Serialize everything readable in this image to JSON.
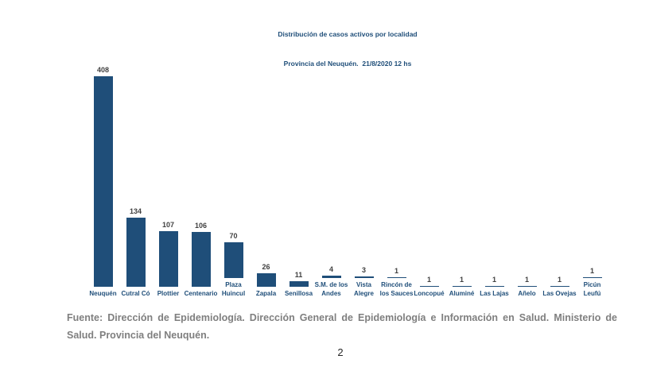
{
  "page": {
    "source": "Fuente: Dirección de Epidemiología. Dirección General de Epidemiología e Información en Salud. Ministerio de Salud. Provincia del Neuquén.",
    "page_number": "2"
  },
  "colors": {
    "bar": "#1F4E79",
    "title": "#1F4E79",
    "axis_label": "#1F4E79",
    "value_label": "#404040",
    "source_text": "#7F7F7F"
  },
  "chart_data": {
    "type": "bar",
    "title": "Distribución de casos activos por localidad",
    "subtitle": "Provincia del Neuquén.  21/8/2020 12 hs",
    "categories": [
      "Neuquén",
      "Cutral Có",
      "Plottier",
      "Centenario",
      "Plaza Huincul",
      "Zapala",
      "Senillosa",
      "S.M. de los Andes",
      "Vista Alegre",
      "Rincón de los Sauces",
      "Loncopué",
      "Aluminé",
      "Las Lajas",
      "Añelo",
      "Las Ovejas",
      "Picún Leufú"
    ],
    "values": [
      408,
      134,
      107,
      106,
      70,
      26,
      11,
      4,
      3,
      1,
      1,
      1,
      1,
      1,
      1,
      1
    ],
    "xlabel": "",
    "ylabel": "",
    "ylim": [
      0,
      408
    ],
    "grid": false,
    "legend": false,
    "data_labels": true,
    "bar_color": "#1F4E79"
  }
}
